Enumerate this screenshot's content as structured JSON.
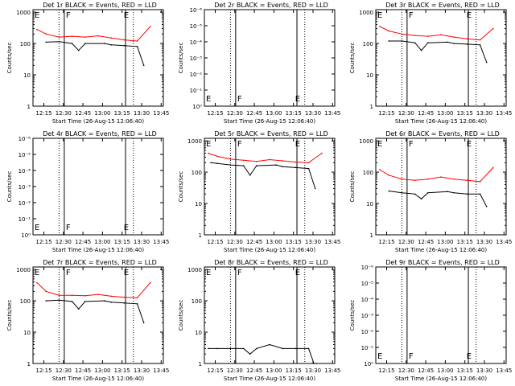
{
  "chart_data": [
    {
      "type": "line",
      "title": "Det 1r BLACK = Events, RED = LLD",
      "xlabel": "Start Time (26-Aug-15 12:06:40)",
      "ylabel": "Counts/sec",
      "yscale": "log",
      "yticks": [
        "1",
        "10",
        "100",
        "1000"
      ],
      "ylim": [
        1,
        1200
      ],
      "xticks": [
        "12:15",
        "12:30",
        "12:45",
        "13:00",
        "13:15",
        "13:30",
        "13:45"
      ],
      "markers": [
        {
          "label": "E"
        },
        {
          "label": "F"
        },
        {
          "label": "E"
        }
      ],
      "series": [
        {
          "name": "Events",
          "color": "#000000",
          "x": [
            10,
            20,
            30,
            35,
            40,
            55,
            60,
            70,
            80,
            85
          ],
          "y": [
            110,
            115,
            100,
            60,
            100,
            100,
            90,
            85,
            80,
            20
          ]
        },
        {
          "name": "LLD",
          "color": "#ff0000",
          "x": [
            3,
            10,
            20,
            30,
            40,
            50,
            60,
            70,
            80,
            90
          ],
          "y": [
            280,
            200,
            160,
            170,
            160,
            175,
            150,
            130,
            120,
            350
          ]
        }
      ]
    },
    {
      "type": "line",
      "title": "Det 2r BLACK = Events, RED = LLD",
      "xlabel": "Start Time (26-Aug-15 12:06:40)",
      "ylabel": "Counts/sec",
      "yscale": "log",
      "yticks": [
        "10⁰",
        "10⁻¹",
        "10⁻²",
        "10⁻³",
        "10⁻⁴",
        "10⁻⁵",
        "10⁻⁶"
      ],
      "xticks": [
        "12:15",
        "12:30",
        "12:45",
        "13:00",
        "13:15",
        "13:30",
        "13:45"
      ],
      "markers": [
        {
          "label": "E"
        },
        {
          "label": "F"
        },
        {
          "label": "E"
        }
      ],
      "series": []
    },
    {
      "type": "line",
      "title": "Det 3r BLACK = Events, RED = LLD",
      "xlabel": "Start Time (26-Aug-15 12:06:40)",
      "ylabel": "Counts/sec",
      "yscale": "log",
      "yticks": [
        "1",
        "10",
        "100",
        "1000"
      ],
      "ylim": [
        1,
        1200
      ],
      "xticks": [
        "12:15",
        "12:30",
        "12:45",
        "13:00",
        "13:15",
        "13:30",
        "13:45"
      ],
      "markers": [
        {
          "label": "E"
        },
        {
          "label": "F"
        },
        {
          "label": "E"
        }
      ],
      "series": [
        {
          "name": "Events",
          "color": "#000000",
          "x": [
            10,
            20,
            30,
            35,
            40,
            55,
            60,
            70,
            80,
            85
          ],
          "y": [
            120,
            120,
            105,
            60,
            105,
            110,
            100,
            95,
            90,
            25
          ]
        },
        {
          "name": "LLD",
          "color": "#ff0000",
          "x": [
            3,
            10,
            20,
            30,
            40,
            50,
            60,
            70,
            80,
            90
          ],
          "y": [
            350,
            250,
            200,
            180,
            170,
            190,
            160,
            140,
            130,
            300
          ]
        }
      ]
    },
    {
      "type": "line",
      "title": "Det 4r BLACK = Events, RED = LLD",
      "xlabel": "Start Time (26-Aug-15 12:06:40)",
      "ylabel": "Counts/sec",
      "yscale": "log",
      "yticks": [
        "10⁰",
        "10⁻¹",
        "10⁻²",
        "10⁻³",
        "10⁻⁴",
        "10⁻⁵",
        "10⁻⁶"
      ],
      "xticks": [
        "12:15",
        "12:30",
        "12:45",
        "13:00",
        "13:15",
        "13:30",
        "13:45"
      ],
      "markers": [
        {
          "label": "E"
        },
        {
          "label": "F"
        },
        {
          "label": "E"
        }
      ],
      "series": []
    },
    {
      "type": "line",
      "title": "Det 5r BLACK = Events, RED = LLD",
      "xlabel": "Start Time (26-Aug-15 12:06:40)",
      "ylabel": "Counts/sec",
      "yscale": "log",
      "yticks": [
        "1",
        "10",
        "100",
        "1000"
      ],
      "ylim": [
        1,
        1200
      ],
      "xticks": [
        "12:15",
        "12:30",
        "12:45",
        "13:00",
        "13:15",
        "13:30",
        "13:45"
      ],
      "markers": [
        {
          "label": "E"
        },
        {
          "label": "F"
        },
        {
          "label": "E"
        }
      ],
      "series": [
        {
          "name": "Events",
          "color": "#000000",
          "x": [
            5,
            10,
            20,
            30,
            35,
            40,
            55,
            60,
            70,
            80,
            85
          ],
          "y": [
            200,
            190,
            170,
            160,
            80,
            160,
            170,
            150,
            140,
            130,
            30
          ]
        },
        {
          "name": "LLD",
          "color": "#ff0000",
          "x": [
            3,
            10,
            20,
            30,
            40,
            50,
            60,
            70,
            80,
            90
          ],
          "y": [
            400,
            320,
            260,
            240,
            220,
            250,
            230,
            210,
            200,
            400
          ]
        }
      ]
    },
    {
      "type": "line",
      "title": "Det 6r BLACK = Events, RED = LLD",
      "xlabel": "Start Time (26-Aug-15 12:06:40)",
      "ylabel": "Counts/sec",
      "yscale": "log",
      "yticks": [
        "1",
        "10",
        "100",
        "1000"
      ],
      "ylim": [
        1,
        1200
      ],
      "xticks": [
        "12:15",
        "12:30",
        "12:45",
        "13:00",
        "13:15",
        "13:30",
        "13:45"
      ],
      "markers": [
        {
          "label": "E"
        },
        {
          "label": "F"
        },
        {
          "label": "E"
        }
      ],
      "series": [
        {
          "name": "Events",
          "color": "#000000",
          "x": [
            10,
            20,
            30,
            35,
            40,
            55,
            60,
            70,
            80,
            85
          ],
          "y": [
            25,
            22,
            20,
            14,
            22,
            24,
            22,
            20,
            20,
            8
          ]
        },
        {
          "name": "LLD",
          "color": "#ff0000",
          "x": [
            3,
            10,
            20,
            30,
            40,
            50,
            60,
            70,
            80,
            90
          ],
          "y": [
            120,
            80,
            60,
            55,
            60,
            70,
            60,
            55,
            50,
            140
          ]
        }
      ]
    },
    {
      "type": "line",
      "title": "Det 7r BLACK = Events, RED = LLD",
      "xlabel": "Start Time (26-Aug-15 12:06:40)",
      "ylabel": "Counts/sec",
      "yscale": "log",
      "yticks": [
        "1",
        "10",
        "100",
        "1000"
      ],
      "ylim": [
        1,
        1200
      ],
      "xticks": [
        "12:15",
        "12:30",
        "12:45",
        "13:00",
        "13:15",
        "13:30",
        "13:45"
      ],
      "markers": [
        {
          "label": "E"
        },
        {
          "label": "F"
        },
        {
          "label": "E"
        }
      ],
      "series": [
        {
          "name": "Events",
          "color": "#000000",
          "x": [
            10,
            20,
            30,
            35,
            40,
            55,
            60,
            70,
            80,
            85
          ],
          "y": [
            100,
            105,
            95,
            55,
            95,
            100,
            90,
            85,
            80,
            20
          ]
        },
        {
          "name": "LLD",
          "color": "#ff0000",
          "x": [
            3,
            10,
            20,
            30,
            40,
            50,
            60,
            70,
            80,
            90
          ],
          "y": [
            380,
            200,
            150,
            150,
            145,
            160,
            140,
            130,
            125,
            380
          ]
        }
      ]
    },
    {
      "type": "line",
      "title": "Det 8r BLACK = Events, RED = LLD",
      "xlabel": "Start Time (26-Aug-15 12:06:40)",
      "ylabel": "Counts/sec",
      "yscale": "log",
      "yticks": [
        "1",
        "10",
        "100",
        "1000"
      ],
      "ylim": [
        1,
        1200
      ],
      "xticks": [
        "12:15",
        "12:30",
        "12:45",
        "13:00",
        "13:15",
        "13:30",
        "13:45"
      ],
      "markers": [
        {
          "label": "E"
        },
        {
          "label": "F"
        },
        {
          "label": "E"
        }
      ],
      "series": [
        {
          "name": "Events",
          "color": "#000000",
          "x": [
            3,
            10,
            20,
            30,
            35,
            40,
            50,
            60,
            70,
            80,
            84,
            86
          ],
          "y": [
            3,
            3,
            3,
            3,
            2,
            3,
            4,
            3,
            3,
            3,
            1,
            1
          ]
        }
      ]
    },
    {
      "type": "line",
      "title": "Det 9r BLACK = Events, RED = LLD",
      "xlabel": "Start Time (26-Aug-15 12:06:40)",
      "ylabel": "Counts/sec",
      "yscale": "log",
      "yticks": [
        "10⁰",
        "10⁻¹",
        "10⁻²",
        "10⁻³",
        "10⁻⁴",
        "10⁻⁵",
        "10⁻⁶"
      ],
      "xticks": [
        "12:15",
        "12:30",
        "12:45",
        "13:00",
        "13:15",
        "13:30",
        "13:45"
      ],
      "markers": [
        {
          "label": "E"
        },
        {
          "label": "F"
        },
        {
          "label": "E"
        }
      ],
      "series": []
    }
  ]
}
